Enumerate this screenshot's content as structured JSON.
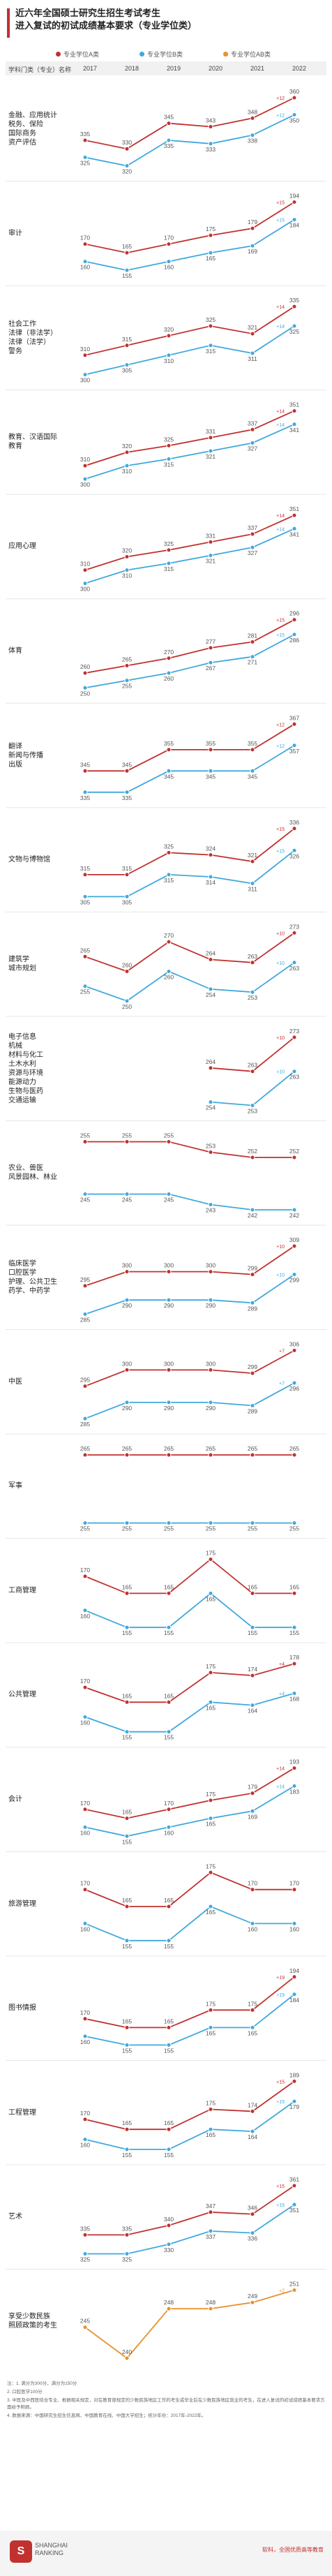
{
  "page": {
    "title_line1": "近六年全国硕士研究生招生考试考生",
    "title_line2": "进入复试的初试成绩基本要求（专业学位类）"
  },
  "legend": {
    "a": {
      "label": "专业学位A类",
      "color": "#c0312f"
    },
    "b": {
      "label": "专业学位B类",
      "color": "#3fa9dd"
    },
    "ab": {
      "label": "专业学位AB类",
      "color": "#e8912d"
    }
  },
  "header": {
    "category": "学科门类（专业）名称",
    "years": [
      "2017",
      "2018",
      "2019",
      "2020",
      "2021",
      "2022"
    ]
  },
  "chart_data": {
    "type": "line",
    "x": [
      "2017",
      "2018",
      "2019",
      "2020",
      "2021",
      "2022"
    ],
    "panels": [
      {
        "label": "金融、应用统计\n税务、保险\n国际商务\n资产评估",
        "a": [
          335,
          330,
          345,
          343,
          348,
          360
        ],
        "b": [
          325,
          320,
          335,
          333,
          338,
          350
        ]
      },
      {
        "label": "审计",
        "a": [
          170,
          165,
          170,
          175,
          179,
          194
        ],
        "b": [
          160,
          155,
          160,
          165,
          169,
          184
        ]
      },
      {
        "label": "社会工作\n法律（非法学）\n法律（法学）\n警务",
        "a": [
          310,
          315,
          320,
          325,
          321,
          335
        ],
        "b": [
          300,
          305,
          310,
          315,
          311,
          325
        ]
      },
      {
        "label": "教育、汉语国际\n教育",
        "a": [
          310,
          320,
          325,
          331,
          337,
          351
        ],
        "b": [
          300,
          310,
          315,
          321,
          327,
          341
        ]
      },
      {
        "label": "应用心理",
        "a": [
          310,
          320,
          325,
          331,
          337,
          351
        ],
        "b": [
          300,
          310,
          315,
          321,
          327,
          341
        ]
      },
      {
        "label": "体育",
        "a": [
          260,
          265,
          270,
          277,
          281,
          296
        ],
        "b": [
          250,
          255,
          260,
          267,
          271,
          286
        ]
      },
      {
        "label": "翻译\n新闻与传播\n出版",
        "a": [
          345,
          345,
          355,
          355,
          355,
          367
        ],
        "b": [
          335,
          335,
          345,
          345,
          345,
          357
        ]
      },
      {
        "label": "文物与博物馆",
        "a": [
          315,
          315,
          325,
          324,
          321,
          336
        ],
        "b": [
          305,
          305,
          315,
          314,
          311,
          326
        ]
      },
      {
        "label": "建筑学\n城市规划",
        "a": [
          265,
          260,
          270,
          264,
          263,
          273
        ],
        "b": [
          255,
          250,
          260,
          254,
          253,
          263
        ]
      },
      {
        "label": "电子信息\n机械\n材料与化工\n土木水利\n资源与环境\n能源动力\n生物与医药\n交通运输",
        "a": [
          null,
          null,
          null,
          264,
          263,
          273
        ],
        "b": [
          null,
          null,
          null,
          254,
          253,
          263
        ]
      },
      {
        "label": "农业、兽医\n风景园林、林业",
        "a": [
          255,
          255,
          255,
          253,
          252,
          252
        ],
        "b": [
          245,
          245,
          245,
          243,
          242,
          242
        ]
      },
      {
        "label": "临床医学\n口腔医学\n护理、公共卫生\n药学、中药学",
        "a": [
          295,
          300,
          300,
          300,
          299,
          309
        ],
        "b": [
          285,
          290,
          290,
          290,
          289,
          299
        ]
      },
      {
        "label": "中医",
        "a": [
          295,
          300,
          300,
          300,
          299,
          306
        ],
        "b": [
          285,
          290,
          290,
          290,
          289,
          296
        ]
      },
      {
        "label": "军事",
        "a": [
          265,
          265,
          265,
          265,
          265,
          265
        ],
        "b": [
          255,
          255,
          255,
          255,
          255,
          255
        ]
      },
      {
        "label": "工商管理",
        "a": [
          170,
          165,
          165,
          175,
          165,
          165
        ],
        "b": [
          160,
          155,
          155,
          165,
          155,
          155
        ]
      },
      {
        "label": "公共管理",
        "a": [
          170,
          165,
          165,
          175,
          174,
          178
        ],
        "b": [
          160,
          155,
          155,
          165,
          164,
          168
        ]
      },
      {
        "label": "会计",
        "a": [
          170,
          165,
          170,
          175,
          179,
          193
        ],
        "b": [
          160,
          155,
          160,
          165,
          169,
          183
        ]
      },
      {
        "label": "旅游管理",
        "a": [
          170,
          165,
          165,
          175,
          170,
          170
        ],
        "b": [
          160,
          155,
          155,
          165,
          160,
          160
        ]
      },
      {
        "label": "图书情报",
        "a": [
          170,
          165,
          165,
          175,
          175,
          194
        ],
        "b": [
          160,
          155,
          155,
          165,
          165,
          184
        ]
      },
      {
        "label": "工程管理",
        "a": [
          170,
          165,
          165,
          175,
          174,
          189
        ],
        "b": [
          160,
          155,
          155,
          165,
          164,
          179
        ]
      },
      {
        "label": "艺术",
        "a": [
          335,
          335,
          340,
          347,
          346,
          361
        ],
        "b": [
          325,
          325,
          330,
          337,
          336,
          351
        ]
      },
      {
        "label": "享受少数民族\n照顾政策的考生",
        "ab": [
          245,
          240,
          248,
          248,
          249,
          251
        ]
      }
    ]
  },
  "footer": {
    "notes": [
      "注：1. 满分为300分，满分为150分",
      "2. 口腔医学100分",
      "3. 中医及中西医结合专业、根据相关规定，对在教育部规定的少数民族地区工作的考生或毕业后在少数民族地区就业的考生，在进入复试的初试成绩基本要求方面给予照顾。",
      "4. 数据来源：中国研究生招生信息网、中国教育在线、中国大学招生；统计年份：2017年-2022年。"
    ],
    "logo": "S",
    "brand_line1": "SHANGHAI",
    "brand_line2": "RANKING",
    "source": "软科，全国优质高等教育"
  }
}
